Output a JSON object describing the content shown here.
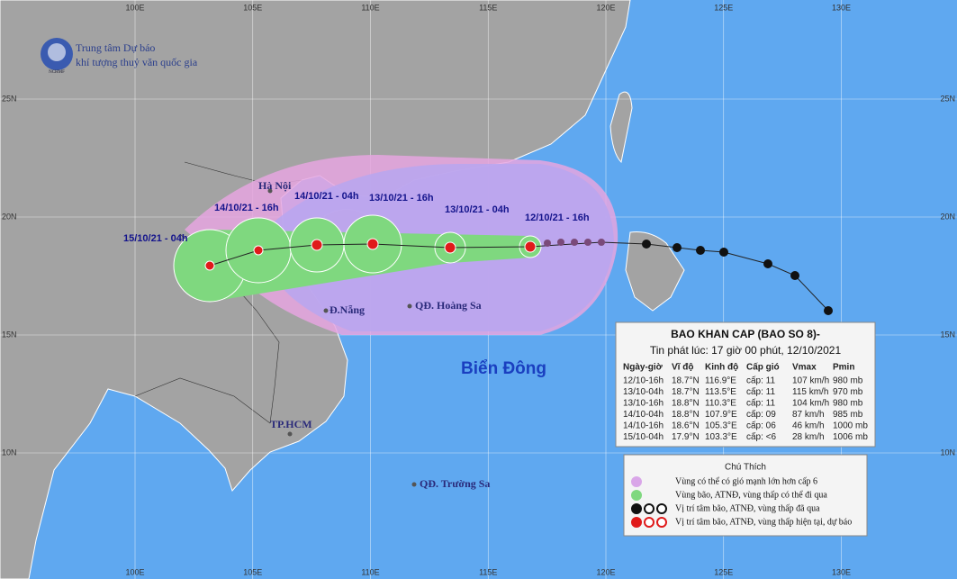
{
  "header": {
    "org_line1": "Trung tâm Dự báo",
    "org_line2": "khí tượng thuỷ văn quốc gia",
    "logo": "NCHMF"
  },
  "grid": {
    "lon": [
      {
        "value": 100,
        "label": "100E"
      },
      {
        "value": 105,
        "label": "105E"
      },
      {
        "value": 110,
        "label": "110E"
      },
      {
        "value": 115,
        "label": "115E"
      },
      {
        "value": 120,
        "label": "120E"
      },
      {
        "value": 125,
        "label": "125E"
      },
      {
        "value": 130,
        "label": "130E"
      }
    ],
    "lat": [
      {
        "value": 25,
        "label": "25N"
      },
      {
        "value": 20,
        "label": "20N"
      },
      {
        "value": 15,
        "label": "15N"
      },
      {
        "value": 10,
        "label": "10N"
      }
    ]
  },
  "places": [
    "Hà Nội",
    "Đ.Nẵng",
    "QĐ. Hoàng Sa",
    "TP.HCM",
    "QĐ. Trường Sa"
  ],
  "sea_label": "Biển Đông",
  "track_labels": [
    "12/10/21 - 16h",
    "13/10/21 - 04h",
    "13/10/21 - 16h",
    "14/10/21 - 04h",
    "14/10/21 - 16h",
    "15/10/21 - 04h"
  ],
  "bulletin": {
    "title": "BAO KHAN CAP (BAO SO 8)-",
    "issued": "Tin phát lúc: 17 giờ 00 phút, 12/10/2021",
    "columns": [
      "Ngày-giờ",
      "Vĩ độ",
      "Kinh độ",
      "Cấp gió",
      "Vmax",
      "Pmin"
    ],
    "rows": [
      [
        "12/10-16h",
        "18.7°N",
        "116.9°E",
        "cấp: 11",
        "107 km/h",
        "980 mb"
      ],
      [
        "13/10-04h",
        "18.7°N",
        "113.5°E",
        "cấp: 11",
        "115 km/h",
        "970 mb"
      ],
      [
        "13/10-16h",
        "18.8°N",
        "110.3°E",
        "cấp: 11",
        "104 km/h",
        "980 mb"
      ],
      [
        "14/10-04h",
        "18.8°N",
        "107.9°E",
        "cấp: 09",
        "87 km/h",
        "985 mb"
      ],
      [
        "14/10-16h",
        "18.6°N",
        "105.3°E",
        "cấp: 06",
        "46 km/h",
        "1000 mb"
      ],
      [
        "15/10-04h",
        "17.9°N",
        "103.3°E",
        "cấp: <6",
        "28 km/h",
        "1006 mb"
      ]
    ]
  },
  "legend": {
    "title": "Chú Thích",
    "items": [
      "Vùng có thể có gió mạnh lớn hơn cấp 6",
      "Vùng bão, ATNĐ, vùng thấp có thể đi qua",
      "Vị trí tâm bão, ATNĐ, vùng thấp đã qua",
      "Vị trí tâm bão, ATNĐ, vùng thấp hiện tại, dự báo"
    ]
  }
}
